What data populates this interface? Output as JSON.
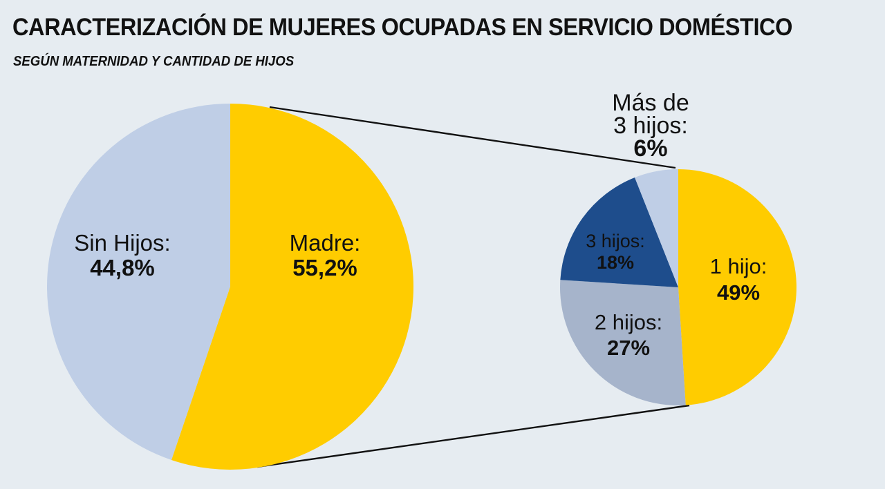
{
  "title": "CARACTERIZACIÓN DE MUJERES OCUPADAS EN SERVICIO DOMÉSTICO",
  "subtitle": "SEGÚN MATERNIDAD Y CANTIDAD DE HIJOS",
  "chart_data": [
    {
      "type": "pie",
      "slices": [
        {
          "label": "Madre:",
          "value_text": "55,2%",
          "value": 55.2,
          "color": "#ffcc00"
        },
        {
          "label": "Sin Hijos:",
          "value_text": "44,8%",
          "value": 44.8,
          "color": "#bfcee6"
        }
      ],
      "exploded_slice": "Madre:"
    },
    {
      "type": "pie",
      "slices": [
        {
          "label": "1 hijo:",
          "value_text": "49%",
          "value": 49,
          "color": "#ffcc00"
        },
        {
          "label": "2 hijos:",
          "value_text": "27%",
          "value": 27,
          "color": "#a6b4cb"
        },
        {
          "label": "3 hijos:",
          "value_text": "18%",
          "value": 18,
          "color": "#1e4d8c"
        },
        {
          "label": "Más de 3 hijos:",
          "value_text": "6%",
          "value": 6,
          "color": "#bfcee6"
        }
      ]
    }
  ]
}
